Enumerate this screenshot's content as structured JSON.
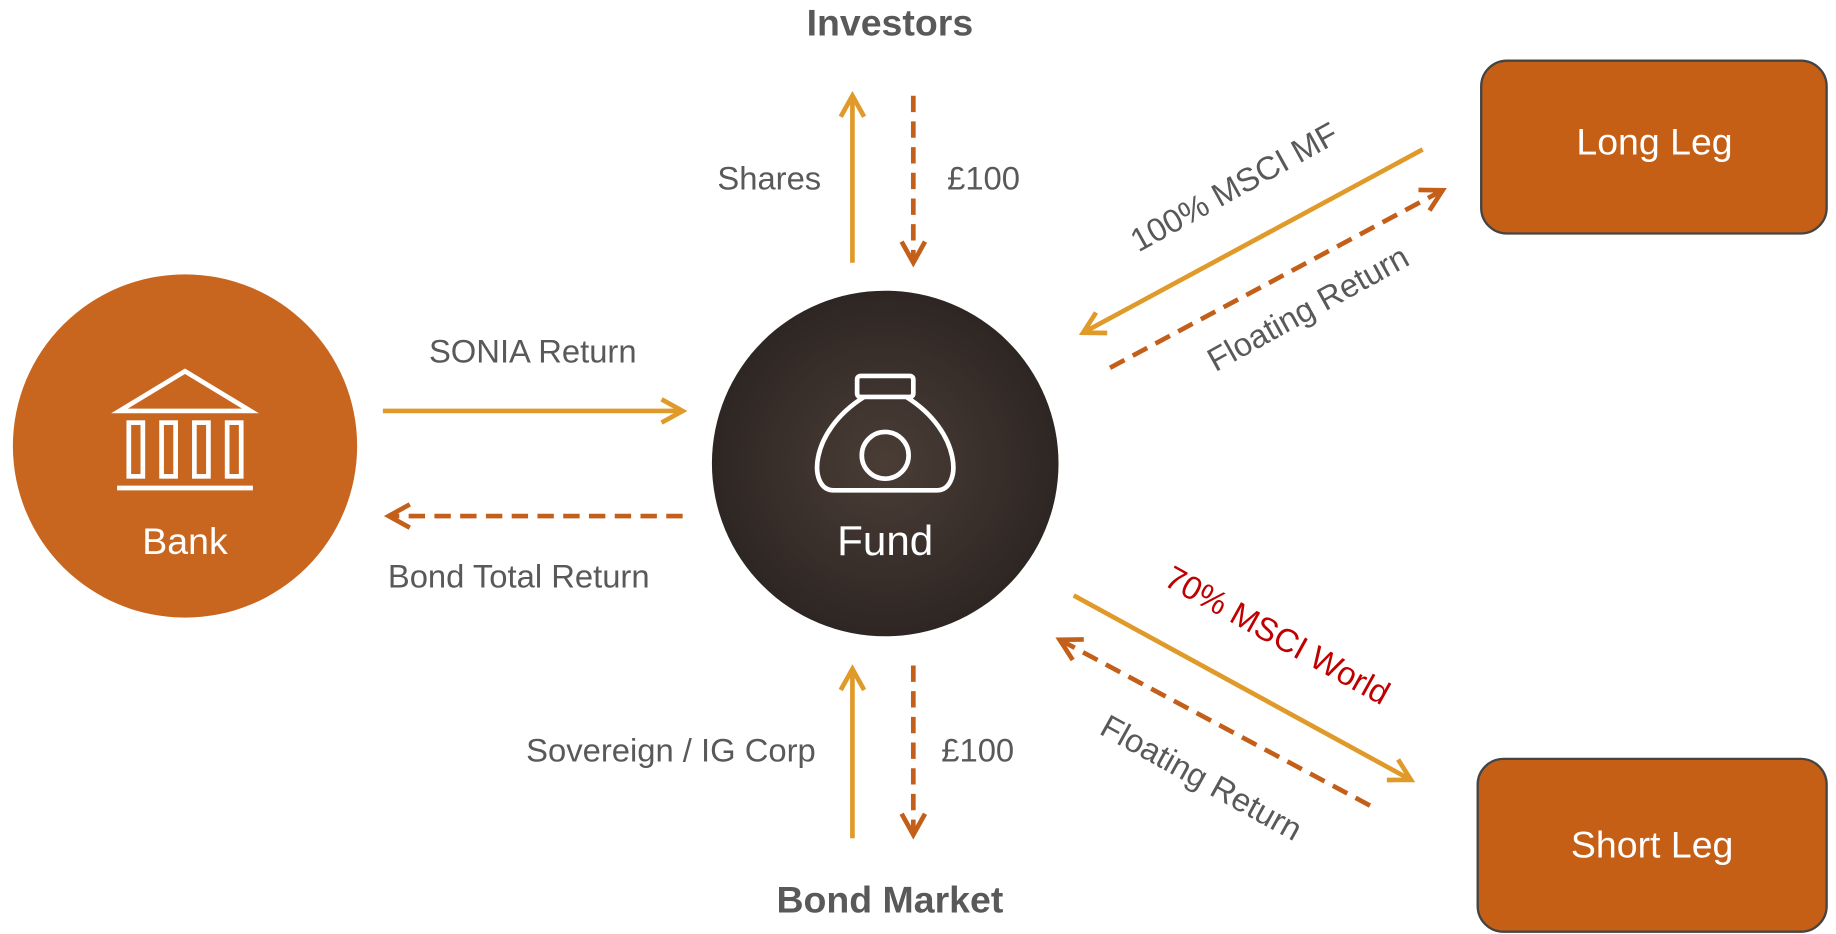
{
  "nodes": {
    "investors": "Investors",
    "bond_market": "Bond Market",
    "bank": "Bank",
    "fund": "Fund",
    "long_leg": "Long Leg",
    "short_leg": "Short Leg"
  },
  "edges": {
    "shares": "Shares",
    "investor_cash": "£100",
    "sonia": "SONIA Return",
    "bond_total_return": "Bond Total Return",
    "sovereign": "Sovereign / IG Corp",
    "bond_cash": "£100",
    "long_pay": "100% MSCI MF",
    "long_receive": "Floating Return",
    "short_pay": "70% MSCI World",
    "short_receive": "Floating Return"
  }
}
